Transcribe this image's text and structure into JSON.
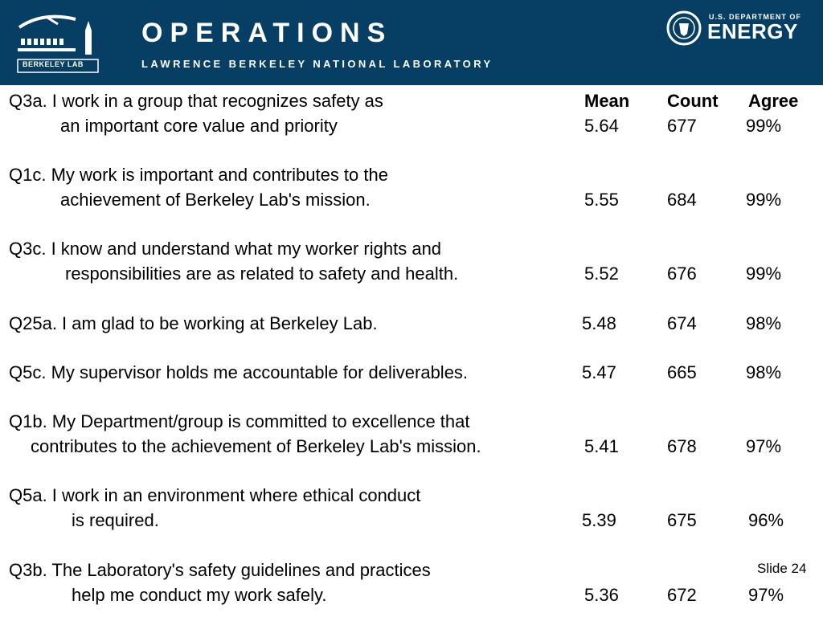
{
  "header": {
    "title": "OPERATIONS",
    "subtitle": "LAWRENCE BERKELEY NATIONAL LABORATORY",
    "logo_text": "BERKELEY LAB",
    "doe_line1": "U.S. DEPARTMENT OF",
    "doe_line2": "ENERGY"
  },
  "columns": {
    "mean": "Mean",
    "count": "Count",
    "agree": "Agree"
  },
  "rows": [
    {
      "line1": "Q3a. I work in a group that recognizes safety as",
      "line2": "an important core value and priority",
      "mean": "5.64",
      "count": "677",
      "agree": "99%"
    },
    {
      "line1": "Q1c.  My work is important and contributes to the",
      "line2": "achievement of Berkeley Lab's mission.",
      "mean": "5.55",
      "count": "684",
      "agree": "99%"
    },
    {
      "line1": "Q3c.  I know and understand what my worker rights and",
      "line2": "responsibilities are as related to safety and health.",
      "mean": "5.52",
      "count": "676",
      "agree": "99%"
    },
    {
      "line1": "Q25a.  I am glad to be working at Berkeley Lab.",
      "mean": "5.48",
      "count": "674",
      "agree": "98%"
    },
    {
      "line1": "Q5c.  My supervisor holds me accountable for deliverables.",
      "mean": "5.47",
      "count": "665",
      "agree": "98%"
    },
    {
      "line1": "Q1b.   My Department/group is committed to excellence that",
      "line2": "contributes to the achievement of Berkeley Lab's mission.",
      "mean": "5.41",
      "count": "678",
      "agree": "97%"
    },
    {
      "line1": "Q5a.    I work in an environment where ethical conduct",
      "line2": "is required.",
      "mean": "5.39",
      "count": "675",
      "agree": "96%"
    },
    {
      "line1": "Q3b.  The Laboratory's safety guidelines and practices",
      "line2": "help me conduct my work safely.",
      "mean": "5.36",
      "count": "672",
      "agree": "97%"
    }
  ],
  "footer": {
    "slide_label": "Slide 24"
  }
}
